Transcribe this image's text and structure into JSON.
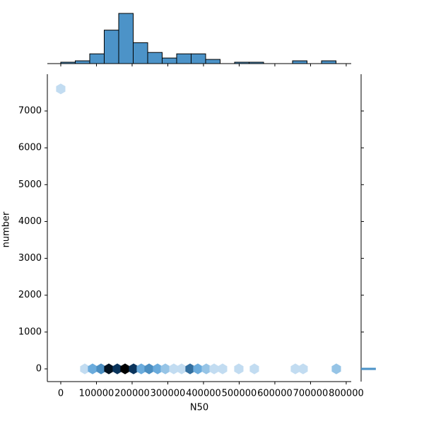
{
  "chart_data": {
    "type": "hexbin",
    "x_label": "N50",
    "y_label": "number",
    "xlim": [
      -37600,
      814000
    ],
    "ylim": [
      -345,
      7998
    ],
    "xticks": [
      0,
      100000,
      200000,
      300000,
      400000,
      500000,
      600000,
      700000,
      800000
    ],
    "yticks": [
      0,
      1000,
      2000,
      3000,
      4000,
      5000,
      6000,
      7000
    ],
    "colors": [
      "#eef5fc",
      "#5ba3d8",
      "#0b3a66",
      "#000000"
    ],
    "x": [
      0,
      67300,
      89100,
      112900,
      134700,
      158400,
      180200,
      204000,
      225700,
      247500,
      271300,
      293100,
      316800,
      338600,
      362400,
      384200,
      407900,
      429700,
      453500,
      499000,
      542600,
      657400,
      679200,
      772300
    ],
    "y": [
      7600,
      0,
      0,
      0,
      0,
      0,
      0,
      0,
      0,
      0,
      0,
      0,
      0,
      0,
      0,
      0,
      0,
      0,
      0,
      0,
      0,
      0,
      0,
      0
    ],
    "counts": [
      1,
      1,
      3,
      4,
      9,
      7,
      10,
      7,
      3,
      4,
      3,
      2,
      1,
      1,
      5,
      3,
      2,
      1,
      1,
      1,
      1,
      1,
      1,
      2
    ],
    "top_hist": {
      "color": "#4c93c8",
      "bins": [
        0,
        40600,
        81200,
        121800,
        162400,
        203000,
        243600,
        284200,
        324800,
        365400,
        406000,
        446600,
        487200,
        527800,
        568400,
        609000,
        649600,
        690200,
        730800,
        771400
      ],
      "counts": [
        1,
        2,
        7,
        24,
        36,
        15,
        8,
        4,
        7,
        7,
        3,
        0,
        1,
        1,
        0,
        0,
        2,
        0,
        2
      ],
      "ylim": [
        0,
        37
      ]
    },
    "right_hist": {
      "color": "#4c93c8",
      "bins": [
        -30,
        30
      ],
      "counts": [
        97
      ],
      "xlim": [
        0,
        400
      ]
    }
  }
}
